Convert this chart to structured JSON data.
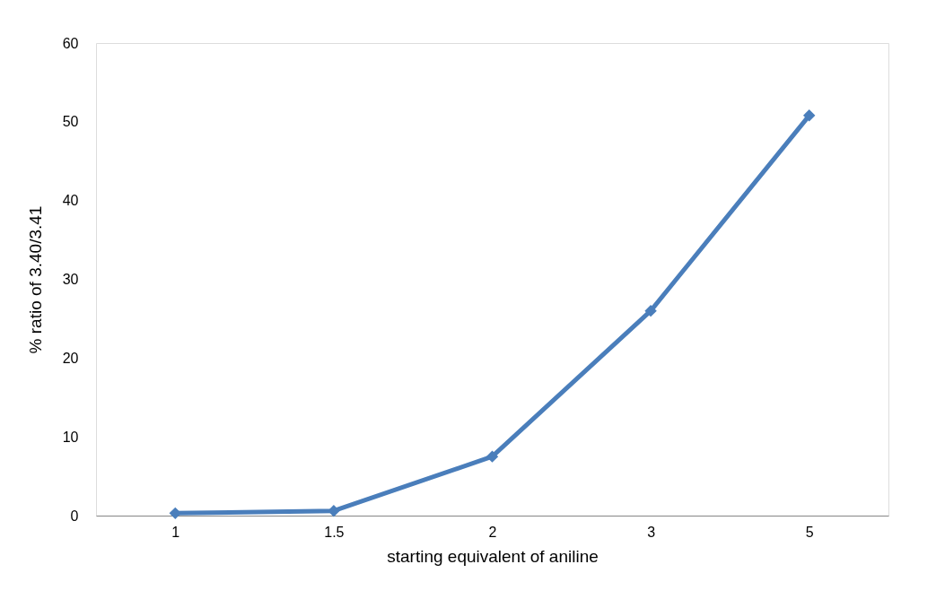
{
  "chart_data": {
    "type": "line",
    "xlabel": "starting equivalent of aniline",
    "ylabel": "% ratio of 3.40/3.41",
    "categories": [
      "1",
      "1.5",
      "2",
      "3",
      "5"
    ],
    "series": [
      {
        "color": "#4a7ebb",
        "values": [
          0.3,
          0.6,
          7.5,
          26.0,
          50.8
        ]
      }
    ],
    "ylim": [
      0,
      60
    ],
    "yticks": [
      0,
      10,
      20,
      30,
      40,
      50,
      60
    ],
    "grid": false,
    "legend": false,
    "marker": "diamond",
    "line_style": "solid"
  }
}
